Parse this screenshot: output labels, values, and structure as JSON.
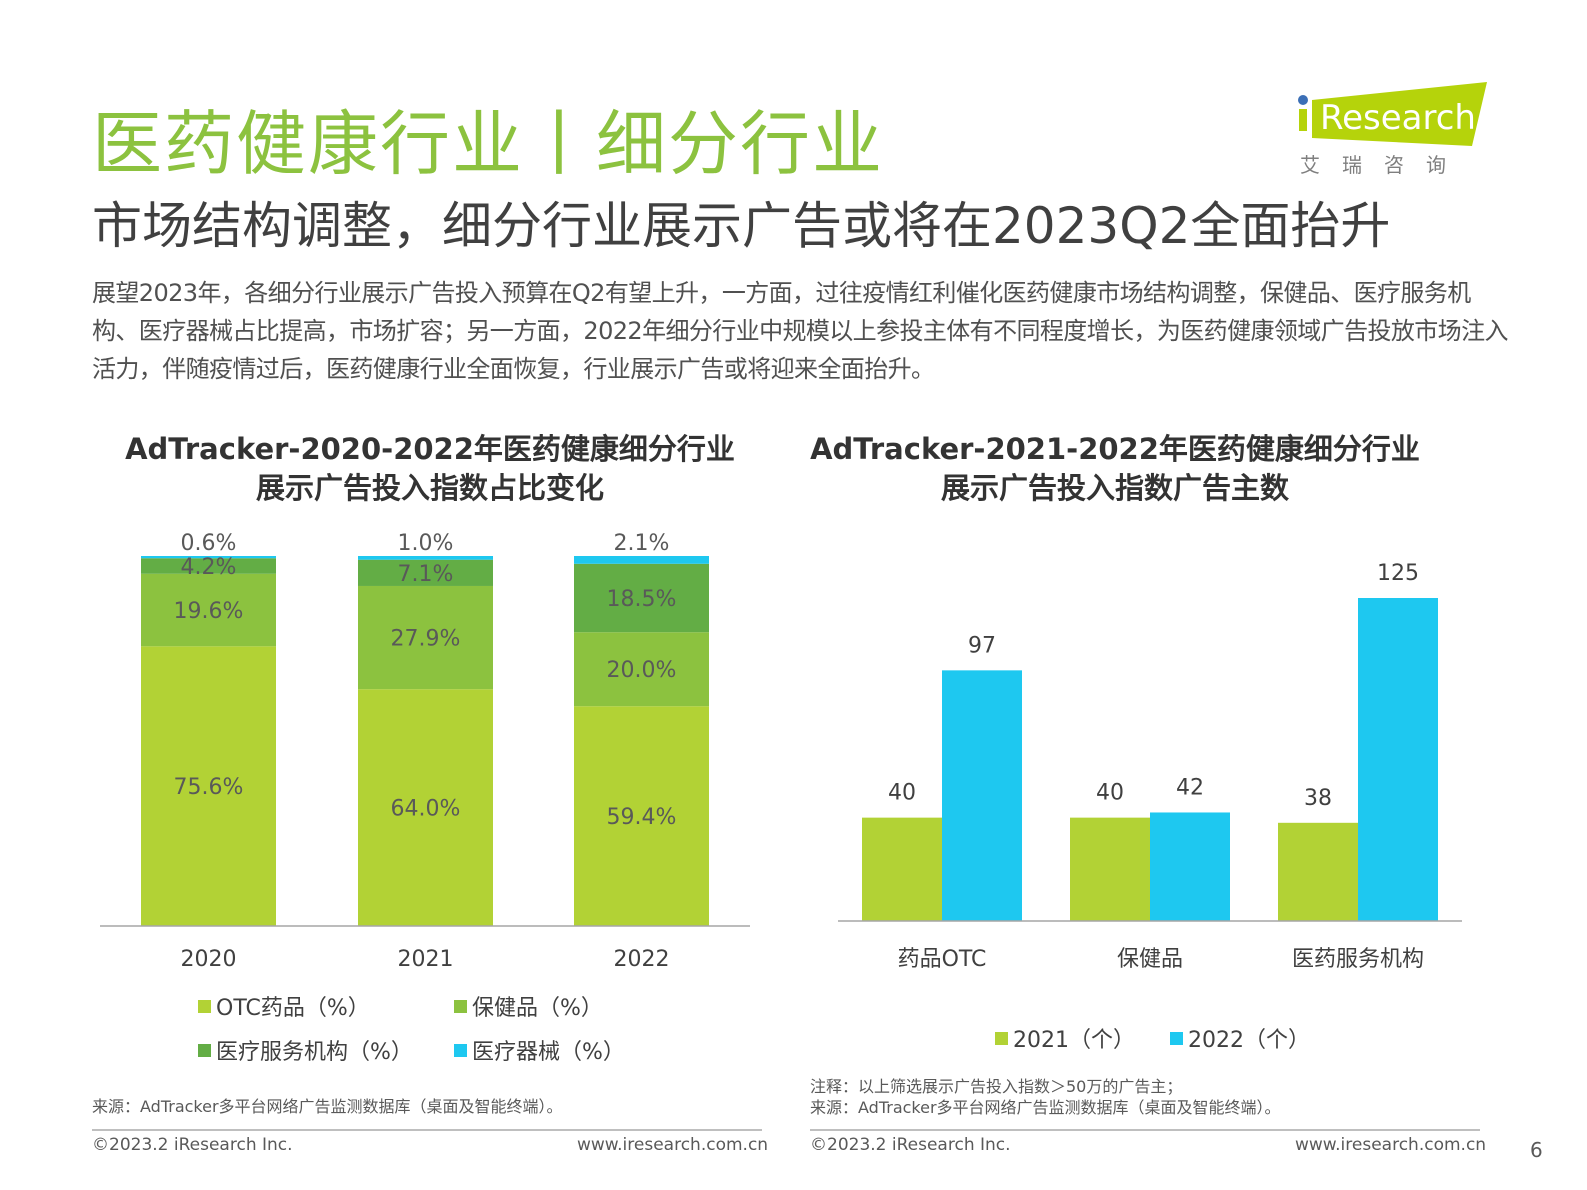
{
  "header": {
    "title": "医药健康行业丨细分行业",
    "subtitle": "市场结构调整，细分行业展示广告或将在2023Q2全面抬升",
    "intro": "展望2023年，各细分行业展示广告投入预算在Q2有望上升，一方面，过往疫情红利催化医药健康市场结构调整，保健品、医疗服务机构、医疗器械占比提高，市场扩容；另一方面，2022年细分行业中规模以上参投主体有不同程度增长，为医药健康领域广告投放市场注入活力，伴随疫情过后，医药健康行业全面恢复，行业展示广告或将迎来全面抬升。"
  },
  "logo": {
    "text": "iResearch",
    "cn": "艾 瑞 咨 询",
    "color": "#b5d30b",
    "dot_color": "#3b6fb6"
  },
  "colors": {
    "otc": "#b2d235",
    "health": "#8cc23f",
    "medical_service": "#63ad45",
    "device": "#1ec8f0",
    "bar2021": "#b2d235",
    "bar2022": "#1ec8f0"
  },
  "chart_data": [
    {
      "type": "bar",
      "stacked": true,
      "title": "AdTracker-2020-2022年医药健康细分行业\n展示广告投入指数占比变化",
      "title_lines": [
        "AdTracker-2020-2022年医药健康细分行业",
        "展示广告投入指数占比变化"
      ],
      "categories": [
        "2020",
        "2021",
        "2022"
      ],
      "series": [
        {
          "name": "OTC药品（%）",
          "values": [
            75.6,
            64.0,
            59.4
          ],
          "labels": [
            "75.6%",
            "64.0%",
            "59.4%"
          ]
        },
        {
          "name": "保健品（%）",
          "values": [
            19.6,
            27.9,
            20.0
          ],
          "labels": [
            "19.6%",
            "27.9%",
            "20.0%"
          ]
        },
        {
          "name": "医疗服务机构（%）",
          "values": [
            4.2,
            7.1,
            18.5
          ],
          "labels": [
            "4.2%",
            "7.1%",
            "18.5%"
          ]
        },
        {
          "name": "医疗器械（%）",
          "values": [
            0.6,
            1.0,
            2.1
          ],
          "labels": [
            "0.6%",
            "1.0%",
            "2.1%"
          ]
        }
      ],
      "ylim": [
        0,
        100
      ],
      "legend": "bottom",
      "grid": false,
      "source": "来源：AdTracker多平台网络广告监测数据库（桌面及智能终端）。"
    },
    {
      "type": "bar",
      "title_lines": [
        "AdTracker-2021-2022年医药健康细分行业",
        "展示广告投入指数广告主数"
      ],
      "categories": [
        "药品OTC",
        "保健品",
        "医药服务机构"
      ],
      "series": [
        {
          "name": "2021（个）",
          "values": [
            40,
            40,
            38
          ]
        },
        {
          "name": "2022（个）",
          "values": [
            97,
            42,
            125
          ]
        }
      ],
      "ylim": [
        0,
        125
      ],
      "legend": "bottom",
      "grid": false,
      "note": "注释：以上筛选展示广告投入指数＞50万的广告主；",
      "source": "来源：AdTracker多平台网络广告监测数据库（桌面及智能终端）。"
    }
  ],
  "footer": {
    "copyright": "©2023.2 iResearch Inc.",
    "url": "www.iresearch.com.cn",
    "page": "6"
  }
}
